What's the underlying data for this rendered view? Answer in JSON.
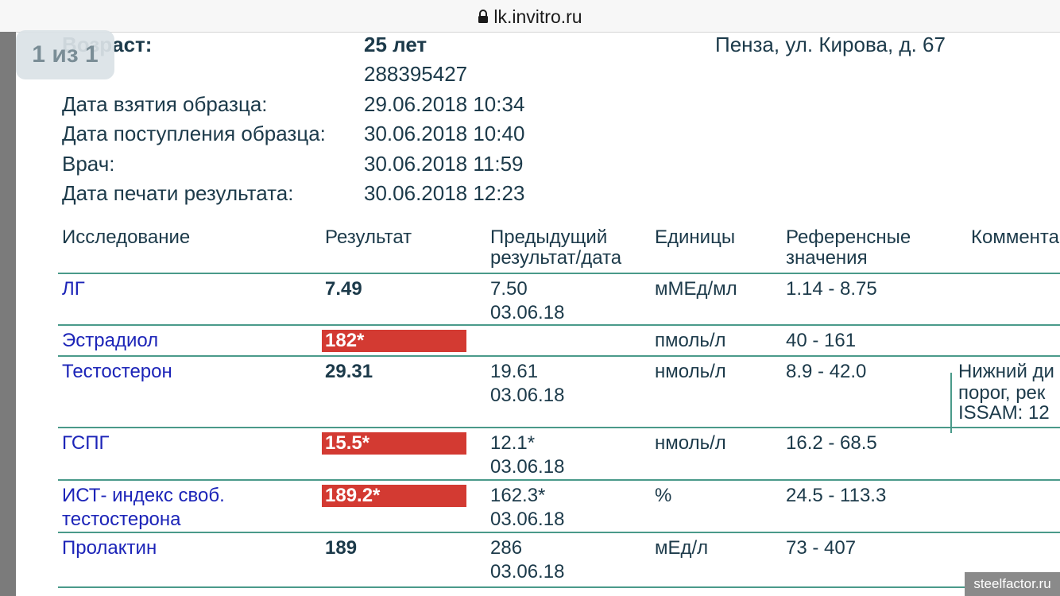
{
  "browser": {
    "url": "lk.invitro.ru"
  },
  "pager": {
    "label": "1 из 1"
  },
  "info": {
    "age_label": "Возраст:",
    "age_value": "25 лет",
    "address": "Пенза, ул. Кирова, д. 67",
    "order_number": "288395427",
    "sample_date_label": "Дата взятия образца:",
    "sample_date_value": "29.06.2018 10:34",
    "received_label": "Дата поступления образца:",
    "received_value": "30.06.2018 10:40",
    "doctor_label": "Врач:",
    "doctor_value": "30.06.2018 11:59",
    "print_label": "Дата печати результата:",
    "print_value": "30.06.2018 12:23"
  },
  "table": {
    "headers": {
      "study": "Исследование",
      "result": "Результат",
      "previous_line1": "Предыдущий",
      "previous_line2": "результат/дата",
      "units": "Единицы",
      "reference_line1": "Референсные",
      "reference_line2": "значения",
      "comment": "Комментарий"
    },
    "rows": [
      {
        "name1": "ЛГ",
        "name2": "",
        "result": "7.49",
        "flagged": false,
        "prev1": "7.50",
        "prev2": "03.06.18",
        "units": "мМЕд/мл",
        "ref": "1.14 - 8.75",
        "c1": "",
        "c2": "",
        "c3": ""
      },
      {
        "name1": "Эстрадиол",
        "name2": "",
        "result": "182*",
        "flagged": true,
        "prev1": "",
        "prev2": "",
        "units": "пмоль/л",
        "ref": "40 - 161",
        "c1": "",
        "c2": "",
        "c3": ""
      },
      {
        "name1": "Тестостерон",
        "name2": "",
        "result": "29.31",
        "flagged": false,
        "prev1": "19.61",
        "prev2": "03.06.18",
        "units": "нмоль/л",
        "ref": "8.9 - 42.0",
        "c1": "Нижний ди",
        "c2": "порог, рек",
        "c3": "ISSAM: 12"
      },
      {
        "name1": "ГСПГ",
        "name2": "",
        "result": "15.5*",
        "flagged": true,
        "prev1": "12.1*",
        "prev2": "03.06.18",
        "units": "нмоль/л",
        "ref": "16.2 - 68.5",
        "c1": "",
        "c2": "",
        "c3": ""
      },
      {
        "name1": "ИСТ- индекс своб.",
        "name2": "тестостерона",
        "result": "189.2*",
        "flagged": true,
        "prev1": "162.3*",
        "prev2": "03.06.18",
        "units": "%",
        "ref": "24.5 - 113.3",
        "c1": "",
        "c2": "",
        "c3": ""
      },
      {
        "name1": "Пролактин",
        "name2": "",
        "result": "189",
        "flagged": false,
        "prev1": "286",
        "prev2": "03.06.18",
        "units": "мЕд/л",
        "ref": "73 - 407",
        "c1": "",
        "c2": "",
        "c3": ""
      }
    ]
  },
  "watermark": "steelfactor.ru",
  "colors": {
    "flag": "#d33a32",
    "rule": "#4a9a8a",
    "link": "#1c24b8",
    "text": "#1c3a4a"
  }
}
